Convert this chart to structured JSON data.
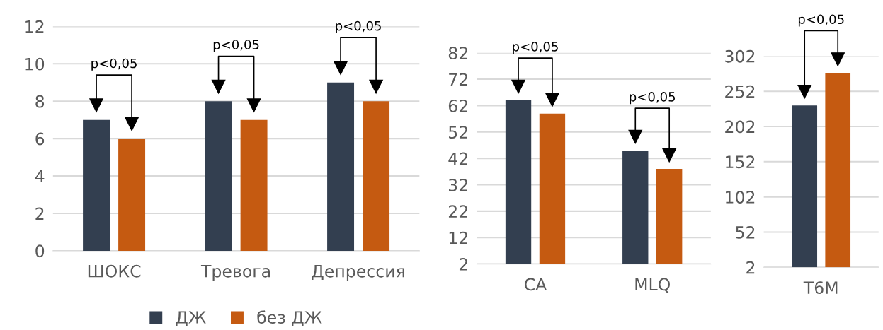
{
  "chart_data": [
    {
      "type": "bar",
      "categories": [
        "ШОКС",
        "Тревога",
        "Депрессия"
      ],
      "series": [
        {
          "name": "ДЖ",
          "color": "#333f50",
          "values": [
            7,
            8,
            9
          ]
        },
        {
          "name": "без ДЖ",
          "color": "#c55a11",
          "values": [
            6,
            7,
            8
          ]
        }
      ],
      "ylim": [
        0,
        12
      ],
      "yticks": [
        0,
        2,
        4,
        6,
        8,
        10,
        12
      ],
      "grid": "y",
      "legend": "bottom",
      "annotations": [
        "p<0,05",
        "p<0,05",
        "p<0,05"
      ]
    },
    {
      "type": "bar",
      "categories": [
        "СА",
        "MLQ"
      ],
      "series": [
        {
          "color": "#333f50",
          "values": [
            64,
            45
          ]
        },
        {
          "color": "#c55a11",
          "values": [
            59,
            38
          ]
        }
      ],
      "ylim": [
        2,
        82
      ],
      "yticks": [
        2,
        12,
        22,
        32,
        42,
        52,
        62,
        72,
        82
      ],
      "grid": "y",
      "annotations": [
        "p<0,05",
        "p<0,05"
      ]
    },
    {
      "type": "bar",
      "categories": [
        "T6M"
      ],
      "series": [
        {
          "color": "#333f50",
          "values": [
            232
          ]
        },
        {
          "color": "#c55a11",
          "values": [
            278
          ]
        }
      ],
      "ylim": [
        2,
        302
      ],
      "yticks": [
        2,
        52,
        102,
        152,
        202,
        252,
        302
      ],
      "grid": "y",
      "annotations": [
        "p<0,05"
      ]
    }
  ]
}
